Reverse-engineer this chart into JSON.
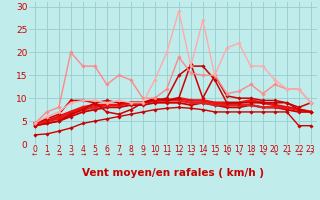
{
  "xlabel": "Vent moyen/en rafales ( km/h )",
  "background_color": "#c0ecec",
  "grid_color": "#98cccc",
  "xlim": [
    -0.5,
    23.5
  ],
  "ylim": [
    0,
    31
  ],
  "yticks": [
    0,
    5,
    10,
    15,
    20,
    25,
    30
  ],
  "xticks": [
    0,
    1,
    2,
    3,
    4,
    5,
    6,
    7,
    8,
    9,
    10,
    11,
    12,
    13,
    14,
    15,
    16,
    17,
    18,
    19,
    20,
    21,
    22,
    23
  ],
  "lines": [
    {
      "x": [
        0,
        1,
        2,
        3,
        4,
        5,
        6,
        7,
        8,
        9,
        10,
        11,
        12,
        13,
        14,
        15,
        16,
        17,
        18,
        19,
        20,
        21,
        22,
        23
      ],
      "y": [
        2.0,
        2.2,
        2.8,
        3.5,
        4.5,
        5.0,
        5.5,
        6.0,
        6.5,
        7.0,
        7.5,
        7.8,
        8.0,
        7.8,
        7.5,
        7.0,
        7.0,
        7.0,
        7.0,
        7.0,
        7.0,
        7.0,
        4.0,
        4.0
      ],
      "color": "#cc0000",
      "lw": 1.0,
      "marker": "D",
      "ms": 1.8
    },
    {
      "x": [
        0,
        1,
        2,
        3,
        4,
        5,
        6,
        7,
        8,
        9,
        10,
        11,
        12,
        13,
        14,
        15,
        16,
        17,
        18,
        19,
        20,
        21,
        22,
        23
      ],
      "y": [
        4.0,
        4.5,
        5.0,
        6.0,
        7.0,
        7.5,
        8.0,
        8.0,
        8.5,
        8.5,
        9.0,
        9.0,
        9.0,
        8.5,
        9.0,
        8.5,
        8.0,
        8.0,
        8.5,
        8.0,
        8.0,
        7.5,
        7.0,
        7.0
      ],
      "color": "#cc0000",
      "lw": 1.3,
      "marker": "D",
      "ms": 1.8
    },
    {
      "x": [
        0,
        1,
        2,
        3,
        4,
        5,
        6,
        7,
        8,
        9,
        10,
        11,
        12,
        13,
        14,
        15,
        16,
        17,
        18,
        19,
        20,
        21,
        22,
        23
      ],
      "y": [
        4.5,
        5.0,
        5.5,
        6.5,
        7.5,
        8.0,
        8.5,
        8.5,
        9.0,
        9.0,
        9.5,
        9.5,
        9.5,
        9.0,
        9.0,
        8.5,
        8.5,
        8.5,
        8.5,
        8.0,
        8.0,
        8.0,
        7.5,
        7.0
      ],
      "color": "#dd2222",
      "lw": 1.6,
      "marker": "D",
      "ms": 1.8
    },
    {
      "x": [
        0,
        1,
        2,
        3,
        4,
        5,
        6,
        7,
        8,
        9,
        10,
        11,
        12,
        13,
        14,
        15,
        16,
        17,
        18,
        19,
        20,
        21,
        22,
        23
      ],
      "y": [
        4.5,
        5.0,
        6.0,
        7.0,
        8.0,
        8.5,
        8.5,
        8.5,
        9.0,
        9.0,
        9.5,
        9.5,
        10.0,
        9.5,
        9.5,
        9.0,
        9.0,
        9.0,
        9.5,
        9.0,
        8.5,
        8.0,
        7.5,
        7.0
      ],
      "color": "#ee1111",
      "lw": 1.9,
      "marker": "D",
      "ms": 1.8
    },
    {
      "x": [
        0,
        1,
        2,
        3,
        4,
        5,
        6,
        7,
        8,
        9,
        10,
        11,
        12,
        13,
        14,
        15,
        16,
        17,
        18,
        19,
        20,
        21,
        22,
        23
      ],
      "y": [
        4.5,
        5.5,
        6.5,
        9.5,
        9.5,
        9.0,
        7.0,
        6.5,
        7.5,
        9.0,
        10.0,
        9.5,
        10.0,
        17.5,
        10.0,
        15.0,
        10.5,
        10.0,
        10.0,
        9.5,
        9.5,
        9.0,
        8.0,
        9.0
      ],
      "color": "#cc0000",
      "lw": 1.1,
      "marker": "D",
      "ms": 1.8
    },
    {
      "x": [
        0,
        1,
        2,
        3,
        4,
        5,
        6,
        7,
        8,
        9,
        10,
        11,
        12,
        13,
        14,
        15,
        16,
        17,
        18,
        19,
        20,
        21,
        22,
        23
      ],
      "y": [
        4.0,
        4.5,
        5.0,
        6.5,
        7.5,
        9.0,
        9.5,
        9.0,
        9.0,
        9.0,
        9.5,
        10.0,
        15.0,
        17.0,
        17.0,
        14.0,
        9.0,
        9.0,
        9.0,
        9.0,
        9.0,
        9.0,
        7.5,
        7.0
      ],
      "color": "#cc0000",
      "lw": 1.1,
      "marker": "D",
      "ms": 1.8
    },
    {
      "x": [
        0,
        1,
        2,
        3,
        4,
        5,
        6,
        7,
        8,
        9,
        10,
        11,
        12,
        13,
        14,
        15,
        16,
        17,
        18,
        19,
        20,
        21,
        22,
        23
      ],
      "y": [
        4.5,
        7.0,
        8.0,
        20.0,
        17.0,
        17.0,
        13.0,
        15.0,
        14.0,
        10.0,
        10.0,
        12.0,
        19.0,
        15.5,
        15.0,
        15.0,
        11.0,
        11.5,
        13.0,
        11.0,
        13.0,
        12.0,
        12.0,
        9.0
      ],
      "color": "#ff8888",
      "lw": 1.0,
      "marker": "D",
      "ms": 1.8
    },
    {
      "x": [
        0,
        1,
        2,
        3,
        4,
        5,
        6,
        7,
        8,
        9,
        10,
        11,
        12,
        13,
        14,
        15,
        16,
        17,
        18,
        19,
        20,
        21,
        22,
        23
      ],
      "y": [
        4.5,
        6.0,
        7.0,
        9.0,
        9.5,
        9.5,
        9.0,
        9.5,
        9.0,
        9.0,
        14.0,
        20.0,
        29.0,
        17.0,
        27.0,
        15.0,
        21.0,
        22.0,
        17.0,
        17.0,
        14.0,
        12.0,
        12.0,
        9.0
      ],
      "color": "#ffaaaa",
      "lw": 1.0,
      "marker": "D",
      "ms": 1.8
    }
  ],
  "xlabel_color": "#cc0000",
  "xlabel_fontsize": 7.5,
  "tick_fontsize": 6.5,
  "tick_color": "#cc0000",
  "xtick_fontsize": 5.5,
  "arrow_chars": [
    "←",
    "→",
    "→",
    "→",
    "→",
    "→",
    "→",
    "→",
    "→",
    "→",
    "→",
    "→",
    "→",
    "→",
    "→",
    "→",
    "↘",
    "↘",
    "→",
    "↘",
    "↘",
    "↘",
    "→",
    "↗"
  ],
  "arrow_color": "#cc0000",
  "arrow_fontsize": 4.5
}
